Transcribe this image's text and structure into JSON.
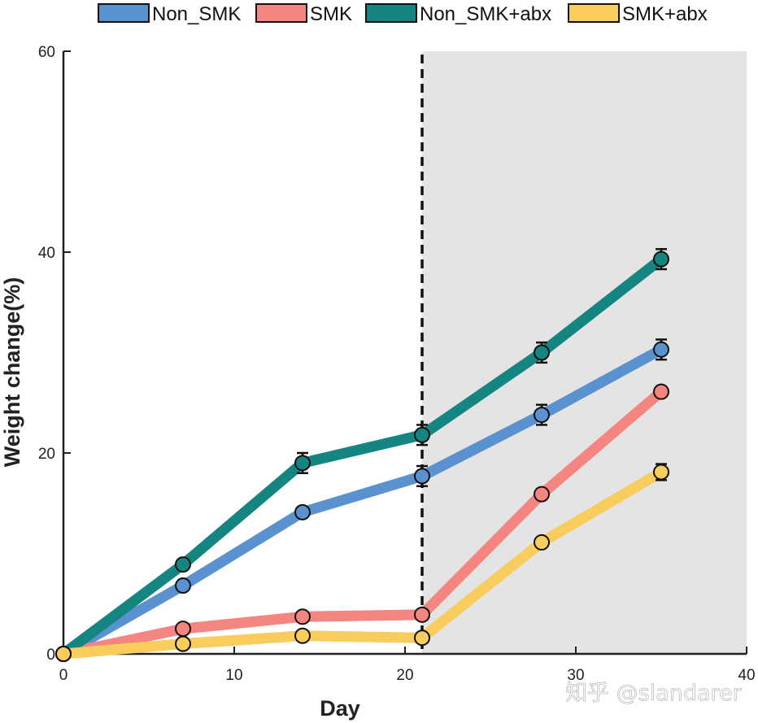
{
  "chart_data": {
    "type": "line",
    "title": "",
    "xlabel": "Day",
    "ylabel": "Weight change(%)",
    "xlim": [
      0,
      40
    ],
    "ylim": [
      0,
      60
    ],
    "x_ticks": [
      0,
      10,
      20,
      30,
      40
    ],
    "y_ticks": [
      0,
      20,
      40,
      60
    ],
    "grid": false,
    "legend_position": "top",
    "vertical_marker": {
      "x": 21,
      "style": "dashed"
    },
    "shaded_region": {
      "x_start": 21,
      "x_end": 40,
      "color": "#e4e4e4"
    },
    "x": [
      0,
      7,
      14,
      21,
      28,
      35
    ],
    "series": [
      {
        "name": "Non_SMK",
        "color": "#5a91cf",
        "values": [
          0,
          6.8,
          14.1,
          17.7,
          23.8,
          30.3
        ],
        "errors": [
          0,
          0.3,
          0.5,
          1.0,
          1.0,
          1.0
        ]
      },
      {
        "name": "SMK",
        "color": "#f58580",
        "values": [
          0,
          2.5,
          3.7,
          3.9,
          15.9,
          26.1
        ],
        "errors": [
          0,
          0.3,
          0.3,
          0.3,
          0.5,
          0.5
        ]
      },
      {
        "name": "Non_SMK+abx",
        "color": "#148580",
        "values": [
          0,
          8.9,
          19.0,
          21.8,
          30.0,
          39.3
        ],
        "errors": [
          0,
          0.3,
          1.0,
          1.0,
          1.0,
          1.0
        ]
      },
      {
        "name": "SMK+abx",
        "color": "#f8cd5e",
        "values": [
          0,
          1.0,
          1.8,
          1.6,
          11.1,
          18.1
        ],
        "errors": [
          0,
          0.3,
          0.3,
          0.3,
          0.3,
          0.8
        ]
      }
    ]
  },
  "watermark": {
    "text": "知乎 @slandarer"
  }
}
